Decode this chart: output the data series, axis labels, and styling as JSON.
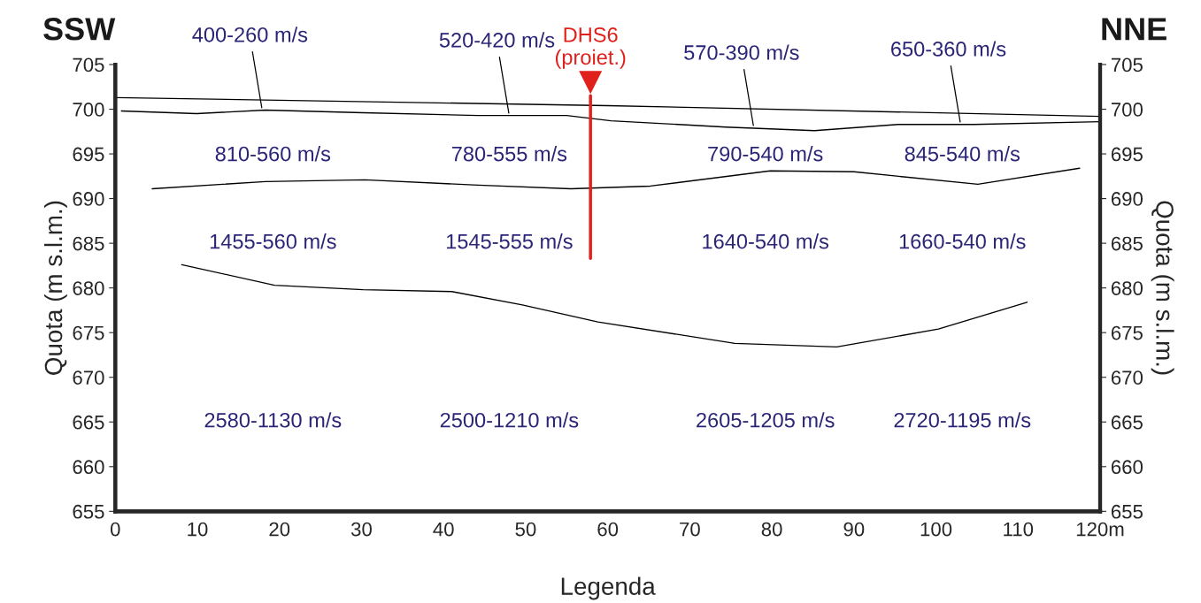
{
  "chart_data": {
    "type": "line",
    "xlabel": "Legenda",
    "ylabel": "Quota (m s.l.m.)",
    "y2label": "Quota (m s.l.m.)",
    "xlim": [
      0,
      120
    ],
    "xticks": [
      0,
      10,
      20,
      30,
      40,
      50,
      60,
      70,
      80,
      90,
      100,
      110,
      {
        "value": 120,
        "label": "120m"
      }
    ],
    "ylim": [
      655,
      705
    ],
    "yticks": [
      655,
      660,
      665,
      670,
      675,
      680,
      685,
      690,
      695,
      700,
      705
    ],
    "y2lim": [
      655,
      705
    ],
    "y2ticks": [
      655,
      660,
      665,
      670,
      675,
      680,
      685,
      690,
      695,
      700,
      705
    ],
    "grid": false,
    "legend": false,
    "line_style": "solid",
    "series": [
      {
        "color": "#000000",
        "x": [
          0,
          60,
          120
        ],
        "values": [
          701.3,
          700.4,
          699.2
        ]
      },
      {
        "color": "#000000",
        "x": [
          0.75,
          9.9,
          18.3,
          30.2,
          44.2,
          55.0,
          60.4,
          74.4,
          85.2,
          95.4,
          104.6,
          120
        ],
        "values": [
          699.8,
          699.5,
          699.9,
          699.6,
          699.3,
          699.3,
          698.7,
          698.0,
          697.6,
          698.3,
          698.3,
          698.6
        ]
      },
      {
        "color": "#000000",
        "x": [
          4.5,
          18.3,
          30.4,
          44.2,
          55.5,
          65.2,
          79.8,
          90.0,
          105.1,
          117.5
        ],
        "values": [
          691.1,
          691.9,
          692.1,
          691.5,
          691.1,
          691.4,
          693.1,
          693.0,
          691.6,
          693.4
        ]
      },
      {
        "color": "#000000",
        "x": [
          8.1,
          19.4,
          30.2,
          41.0,
          49.6,
          58.8,
          75.5,
          87.9,
          100.3,
          111.1
        ],
        "values": [
          682.6,
          680.3,
          679.8,
          679.6,
          678.1,
          676.2,
          673.8,
          673.4,
          675.4,
          678.4
        ]
      },
      {
        "name": "DHS6\n(proiet.)",
        "color": "#e0201b",
        "x": [
          57.9,
          57.9
        ],
        "values": [
          701.5,
          683.3
        ]
      },
      {
        "type": "scatter",
        "marker": "triangle",
        "color": "#e0201b",
        "x": [
          57.9
        ],
        "values": [
          703.0
        ]
      }
    ],
    "annotations": [
      "SSW",
      "NNE",
      {
        "text": "400-260 m/s",
        "x": 17.9,
        "y": 699.9
      },
      {
        "text": "520-420 m/s",
        "x": 48.0,
        "y": 699.3
      },
      {
        "text": "570-390 m/s",
        "x": 77.8,
        "y": 697.9
      },
      {
        "text": "650-360 m/s",
        "x": 103.0,
        "y": 698.3
      },
      "810-560 m/s",
      "780-555 m/s",
      "790-540 m/s",
      "845-540 m/s",
      "1455-560 m/s",
      "1545-555 m/s",
      "1640-540 m/s",
      "1660-540 m/s",
      "2580-1130 m/s",
      "2500-1210 m/s",
      "2605-1205 m/s",
      "2720-1195 m/s"
    ]
  }
}
